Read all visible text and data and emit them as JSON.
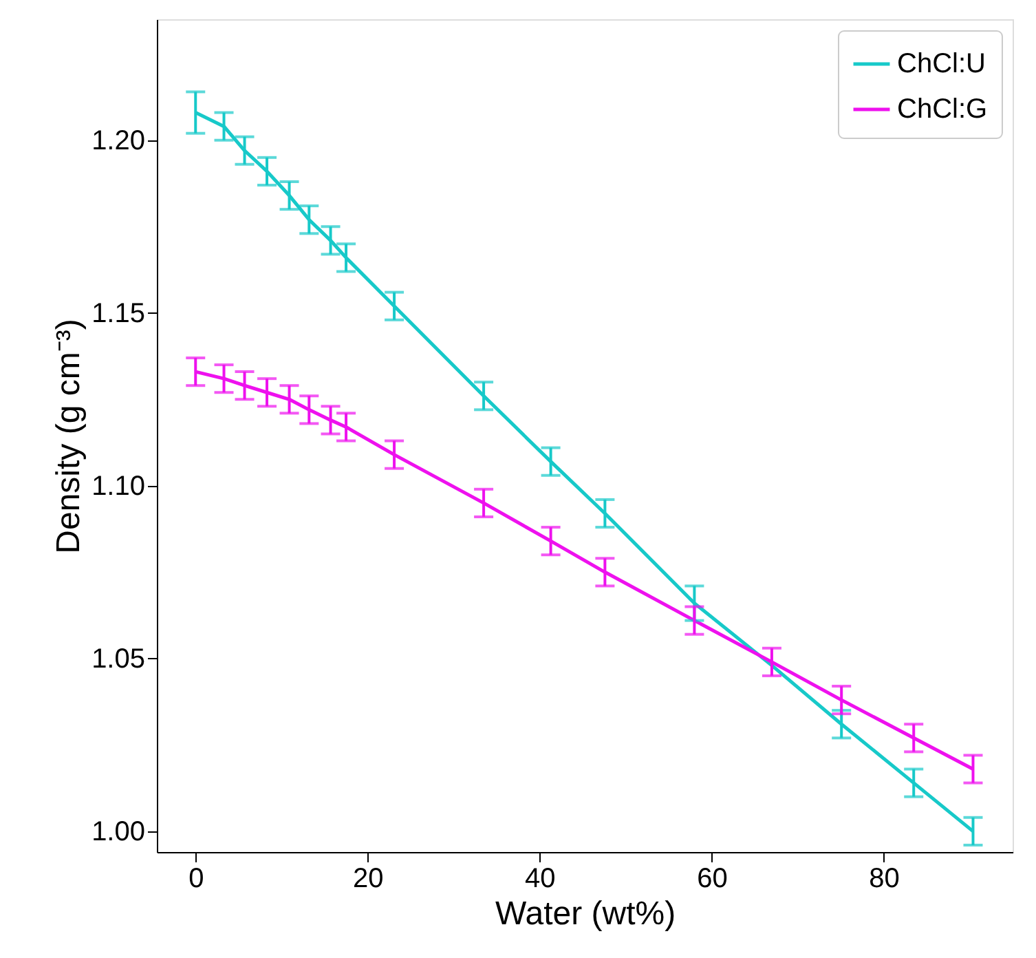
{
  "chart_data": {
    "type": "line",
    "xlabel": "Water (wt%)",
    "ylabel": "Density (g cm⁻³)",
    "x": [
      0,
      3.3,
      5.7,
      8.3,
      10.9,
      13.2,
      15.7,
      17.5,
      23.1,
      33.5,
      41.3,
      47.6,
      58,
      67,
      75.1,
      83.5,
      90.4
    ],
    "series": [
      {
        "name": "ChCl:U",
        "color": "#17c9c9",
        "values": [
          1.208,
          1.204,
          1.197,
          1.191,
          1.184,
          1.177,
          1.171,
          1.166,
          1.152,
          1.126,
          1.107,
          1.092,
          1.066,
          1.048,
          1.031,
          1.014,
          1.0
        ],
        "errors": [
          0.006,
          0.004,
          0.004,
          0.004,
          0.004,
          0.004,
          0.004,
          0.004,
          0.004,
          0.004,
          0.004,
          0.004,
          0.005,
          null,
          0.004,
          0.004,
          0.004
        ]
      },
      {
        "name": "ChCl:G",
        "color": "#ee11ee",
        "values": [
          1.133,
          1.131,
          1.129,
          1.127,
          1.125,
          1.122,
          1.119,
          1.117,
          1.109,
          1.095,
          1.084,
          1.075,
          1.061,
          1.049,
          1.038,
          1.027,
          1.018
        ],
        "errors": [
          0.004,
          0.004,
          0.004,
          0.004,
          0.004,
          0.004,
          0.004,
          0.004,
          0.004,
          0.004,
          0.004,
          0.004,
          0.004,
          0.004,
          0.004,
          0.004,
          0.004
        ]
      }
    ],
    "xlim": [
      -4.5,
      95
    ],
    "xticks": [
      0,
      20,
      40,
      60,
      80
    ],
    "ylim": [
      0.994,
      1.235
    ],
    "yticks": [
      {
        "value": 1.0,
        "label": "1.00"
      },
      {
        "value": 1.05,
        "label": "1.05"
      },
      {
        "value": 1.1,
        "label": "1.10"
      },
      {
        "value": 1.15,
        "label": "1.15"
      },
      {
        "value": 1.2,
        "label": "1.20"
      }
    ],
    "grid": false,
    "legend": "top right",
    "marker": "none",
    "line_style": "solid"
  }
}
